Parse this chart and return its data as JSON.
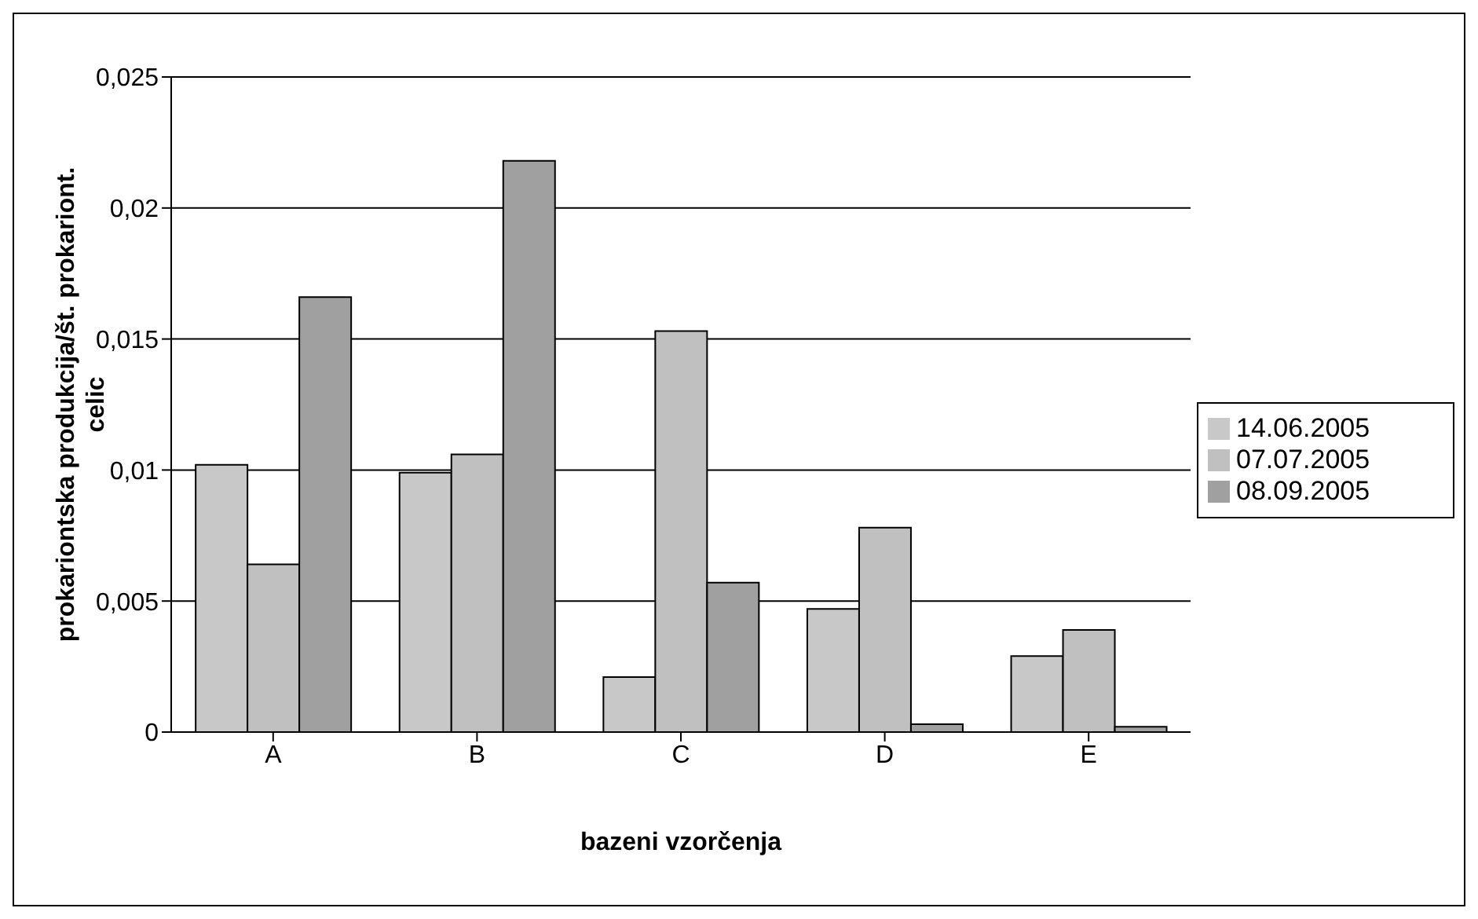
{
  "chart_data": {
    "type": "bar",
    "xlabel": "bazeni vzorčenja",
    "ylabel": "prokariontska produkcija/št. prokariont. celic",
    "categories": [
      "A",
      "B",
      "C",
      "D",
      "E"
    ],
    "series": [
      {
        "name": "14.06.2005",
        "color": "#c8c8c8",
        "values": [
          0.0102,
          0.0099,
          0.0021,
          0.0047,
          0.0029
        ]
      },
      {
        "name": "07.07.2005",
        "color": "#c0c0c0",
        "values": [
          0.0064,
          0.0106,
          0.0153,
          0.0078,
          0.0039
        ]
      },
      {
        "name": "08.09.2005",
        "color": "#a0a0a0",
        "values": [
          0.0166,
          0.0218,
          0.0057,
          0.0003,
          0.0002
        ]
      }
    ],
    "ylim": [
      0,
      0.025
    ],
    "yticks": [
      {
        "value": 0,
        "label": "0"
      },
      {
        "value": 0.005,
        "label": "0,005"
      },
      {
        "value": 0.01,
        "label": "0,01"
      },
      {
        "value": 0.015,
        "label": "0,015"
      },
      {
        "value": 0.02,
        "label": "0,02"
      },
      {
        "value": 0.025,
        "label": "0,025"
      }
    ],
    "grid": "y",
    "legend": "right"
  }
}
